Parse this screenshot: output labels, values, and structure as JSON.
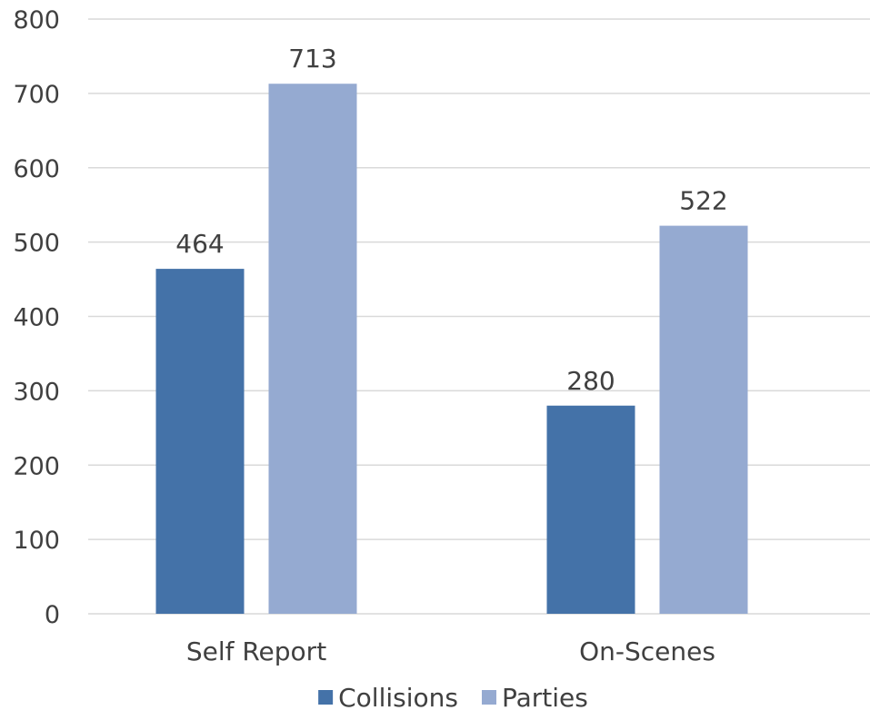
{
  "chart_data": {
    "type": "bar",
    "categories": [
      "Self Report",
      "On-Scenes"
    ],
    "series": [
      {
        "name": "Collisions",
        "values": [
          464,
          280
        ],
        "color": "#4472a8"
      },
      {
        "name": "Parties",
        "values": [
          713,
          522
        ],
        "color": "#95aad1"
      }
    ],
    "title": "",
    "xlabel": "",
    "ylabel": "",
    "ylim": [
      0,
      800
    ],
    "yticks": [
      0,
      100,
      200,
      300,
      400,
      500,
      600,
      700,
      800
    ],
    "grid": true,
    "legend_position": "bottom",
    "data_labels": true
  }
}
